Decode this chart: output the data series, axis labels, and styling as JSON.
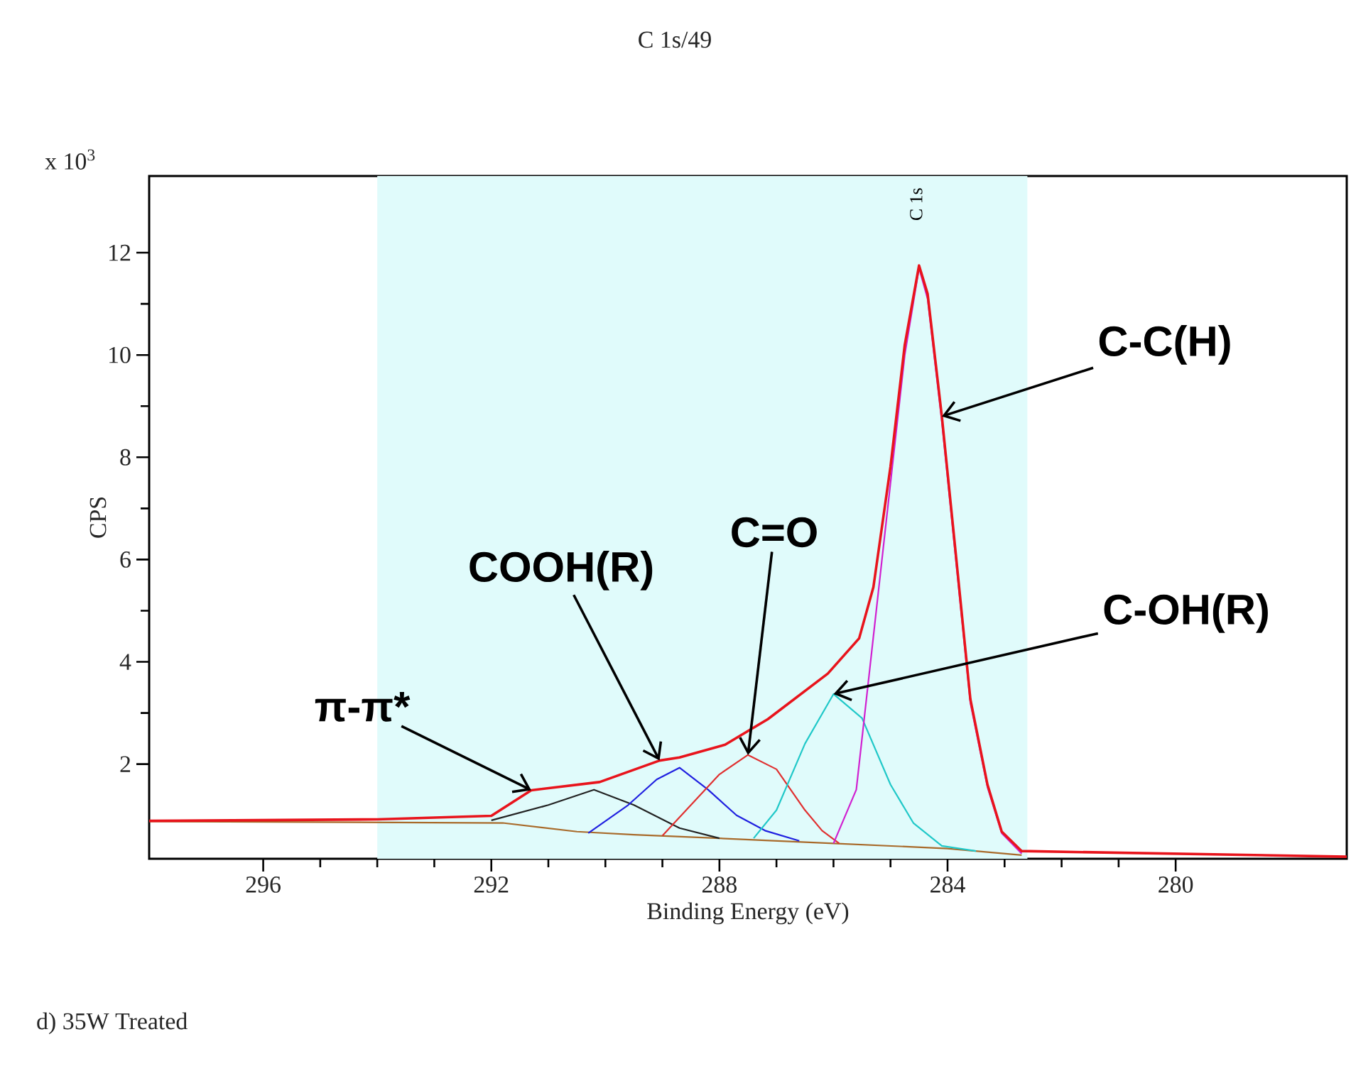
{
  "chart_data": {
    "type": "line",
    "title": "C 1s/49",
    "xlabel": "Binding Energy (eV)",
    "ylabel": "CPS",
    "xlim": [
      298,
      277
    ],
    "xticks": [
      296,
      292,
      288,
      284,
      280
    ],
    "ylim": [
      0.15,
      13.5
    ],
    "yticks": [
      2,
      4,
      6,
      8,
      10,
      12
    ],
    "bands": [
      {
        "axis": "x",
        "from": 294,
        "to": 282.6,
        "color": "#e0fbfb"
      }
    ],
    "marker": "none",
    "line_style": "solid",
    "series": [
      {
        "color": "#a86a2a",
        "x": [
          298,
          291.8,
          290.5,
          289.5,
          288,
          286,
          284,
          282.7
        ],
        "values": [
          0.88,
          0.85,
          0.68,
          0.62,
          0.55,
          0.45,
          0.35,
          0.22
        ]
      },
      {
        "color": "#222222",
        "x": [
          292,
          291,
          290.2,
          289.5,
          288.7,
          288
        ],
        "values": [
          0.9,
          1.2,
          1.5,
          1.2,
          0.75,
          0.55
        ]
      },
      {
        "color": "#2020e0",
        "x": [
          290.3,
          289.6,
          289.1,
          288.7,
          288.2,
          287.7,
          287.2,
          286.6
        ],
        "values": [
          0.65,
          1.2,
          1.7,
          1.93,
          1.5,
          1.0,
          0.7,
          0.5
        ]
      },
      {
        "color": "#e03030",
        "x": [
          289,
          288.5,
          288,
          287.5,
          287,
          286.5,
          286.2,
          285.9
        ],
        "values": [
          0.6,
          1.2,
          1.8,
          2.18,
          1.9,
          1.1,
          0.7,
          0.45
        ]
      },
      {
        "color": "#20c8c8",
        "x": [
          287.4,
          287,
          286.5,
          286,
          285.5,
          285,
          284.6,
          284.1,
          283.5
        ],
        "values": [
          0.55,
          1.1,
          2.4,
          3.37,
          2.9,
          1.6,
          0.85,
          0.4,
          0.3
        ]
      },
      {
        "color": "#d020d0",
        "x": [
          286,
          285.6,
          285.3,
          285,
          284.75,
          284.5,
          284.35,
          284.1,
          283.85,
          283.6,
          283.3,
          283.05,
          282.7
        ],
        "values": [
          0.45,
          1.5,
          4.5,
          7.5,
          10.0,
          11.7,
          11.1,
          8.7,
          5.95,
          3.2,
          1.55,
          0.65,
          0.25
        ]
      },
      {
        "color": "#e8141c",
        "x": [
          298,
          294,
          292,
          291.3,
          290.1,
          289.05,
          288.7,
          287.9,
          287.15,
          286.1,
          285.55,
          285.3,
          285,
          284.75,
          284.5,
          284.35,
          284.1,
          283.85,
          283.6,
          283.3,
          283.05,
          282.7,
          277
        ],
        "values": [
          0.89,
          0.92,
          0.99,
          1.49,
          1.65,
          2.07,
          2.13,
          2.38,
          2.88,
          3.77,
          4.46,
          5.46,
          7.82,
          10.2,
          11.75,
          11.2,
          8.8,
          6.05,
          3.27,
          1.6,
          0.68,
          0.3,
          0.19
        ]
      }
    ],
    "annotations": [
      {
        "text": "π-π*",
        "x": 291.3,
        "y": 1.49
      },
      {
        "text": "COOH(R)",
        "x": 289.05,
        "y": 2.07
      },
      {
        "text": "C=O",
        "x": 287.5,
        "y": 2.18
      },
      {
        "text": "C-OH(R)",
        "x": 286,
        "y": 3.37
      },
      {
        "text": "C-C(H)",
        "x": 284.1,
        "y": 8.8
      },
      "C 1s",
      "x 10$^{3}$",
      "d) 35W Treated"
    ]
  }
}
